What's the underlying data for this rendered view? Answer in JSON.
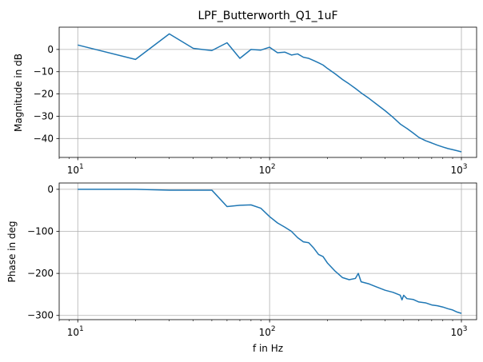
{
  "chart_data": [
    {
      "type": "line",
      "title": "LPF_Butterworth_Q1_1uF",
      "xlabel": "",
      "ylabel": "Magnitude in dB",
      "xscale": "log",
      "xlim": [
        8,
        1200
      ],
      "ylim": [
        -48.5,
        10
      ],
      "xticks": [
        10,
        100,
        1000
      ],
      "xtick_labels": [
        {
          "base": "10",
          "exp": "1"
        },
        {
          "base": "10",
          "exp": "2"
        },
        {
          "base": "10",
          "exp": "3"
        }
      ],
      "yticks": [
        0,
        -10,
        -20,
        -30,
        -40
      ],
      "ytick_labels": [
        "0",
        "−10",
        "−20",
        "−30",
        "−40"
      ],
      "grid": true,
      "color": "#1f77b4",
      "x": [
        10,
        20,
        30,
        40,
        50,
        60,
        70,
        80,
        90,
        100,
        110,
        120,
        130,
        140,
        150,
        160,
        170,
        180,
        190,
        200,
        220,
        240,
        260,
        280,
        300,
        330,
        360,
        400,
        440,
        480,
        520,
        560,
        600,
        650,
        700,
        750,
        800,
        850,
        900,
        950,
        1000
      ],
      "y": [
        2,
        -4.5,
        7,
        0.5,
        -0.5,
        3,
        -4,
        0,
        -0.3,
        1,
        -1.5,
        -1.2,
        -2.5,
        -2,
        -3.5,
        -4,
        -5,
        -6,
        -7,
        -8.5,
        -11,
        -13.5,
        -15.5,
        -17.5,
        -19.5,
        -22,
        -24.5,
        -27.5,
        -30.5,
        -33.5,
        -35.5,
        -37.5,
        -39.5,
        -41,
        -42,
        -43,
        -43.8,
        -44.5,
        -45,
        -45.5,
        -46
      ]
    },
    {
      "type": "line",
      "title": "",
      "xlabel": "f in Hz",
      "ylabel": "Phase in deg",
      "xscale": "log",
      "xlim": [
        8,
        1200
      ],
      "ylim": [
        -310,
        15
      ],
      "xticks": [
        10,
        100,
        1000
      ],
      "xtick_labels": [
        {
          "base": "10",
          "exp": "1"
        },
        {
          "base": "10",
          "exp": "2"
        },
        {
          "base": "10",
          "exp": "3"
        }
      ],
      "yticks": [
        0,
        -100,
        -200,
        -300
      ],
      "ytick_labels": [
        "0",
        "−100",
        "−200",
        "−300"
      ],
      "grid": true,
      "color": "#1f77b4",
      "x": [
        10,
        20,
        30,
        40,
        50,
        60,
        70,
        80,
        90,
        100,
        110,
        120,
        130,
        140,
        150,
        160,
        170,
        180,
        190,
        200,
        220,
        240,
        260,
        280,
        290,
        300,
        330,
        360,
        400,
        440,
        480,
        490,
        500,
        520,
        560,
        600,
        650,
        700,
        750,
        800,
        850,
        900,
        950,
        1000
      ],
      "y": [
        0,
        0,
        -2,
        -2,
        -2,
        -41,
        -38,
        -37,
        -45,
        -65,
        -80,
        -90,
        -100,
        -115,
        -125,
        -127,
        -140,
        -155,
        -160,
        -175,
        -195,
        -210,
        -215,
        -212,
        -200,
        -220,
        -225,
        -232,
        -240,
        -245,
        -252,
        -263,
        -252,
        -260,
        -262,
        -268,
        -270,
        -275,
        -277,
        -280,
        -284,
        -287,
        -292,
        -295
      ]
    }
  ]
}
